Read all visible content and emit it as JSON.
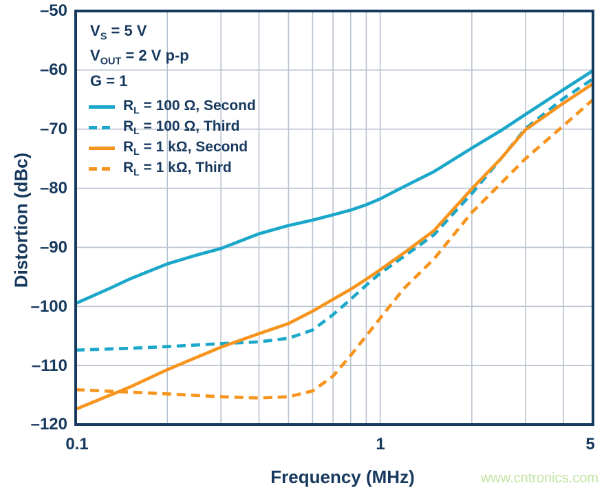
{
  "conditions": {
    "lines": [
      {
        "pre": "V",
        "sub": "S",
        "post": " = 5 V"
      },
      {
        "pre": "V",
        "sub": "OUT",
        "post": " = 2 V p-p"
      },
      {
        "pre": "G",
        "sub": "",
        "post": " = 1"
      }
    ]
  },
  "legend": {
    "items": [
      {
        "pre": "R",
        "sub": "L",
        "post": " = 100 Ω, Second"
      },
      {
        "pre": "R",
        "sub": "L",
        "post": " = 100 Ω, Third"
      },
      {
        "pre": "R",
        "sub": "L",
        "post": " = 1 kΩ, Second"
      },
      {
        "pre": "R",
        "sub": "L",
        "post": " = 1 kΩ, Third"
      }
    ]
  },
  "axes": {
    "y_label": "Distortion (dBc)",
    "x_label": "Frequency (MHz)",
    "y_tick_labels": [
      "–50",
      "–60",
      "–70",
      "–80",
      "–90",
      "–100",
      "–110",
      "–120"
    ],
    "x_tick_labels": [
      "0.1",
      "1",
      "5"
    ]
  },
  "watermark": {
    "text": "www.cntronics.com",
    "color": "#c3e4a3"
  },
  "colors": {
    "navy": "#17395e",
    "cyan": "#1ba7c9",
    "orange": "#f7941e",
    "grid": "#b9c3cf"
  },
  "chart_data": {
    "type": "line",
    "title": "",
    "x_scale": "log",
    "xlim": [
      0.1,
      5
    ],
    "ylim": [
      -120,
      -50
    ],
    "xlabel": "Frequency (MHz)",
    "ylabel": "Distortion (dBc)",
    "x_ticks": [
      0.1,
      1,
      5
    ],
    "y_ticks": [
      -50,
      -60,
      -70,
      -80,
      -90,
      -100,
      -110,
      -120
    ],
    "x_gridlines": [
      0.2,
      0.3,
      0.4,
      0.5,
      0.6,
      0.7,
      0.8,
      0.9,
      1,
      2,
      3,
      4
    ],
    "y_gridlines": [
      -60,
      -70,
      -80,
      -90,
      -100,
      -110
    ],
    "grid": true,
    "legend_position": "top-left-inside",
    "series": [
      {
        "name": "RL = 100 Ω, Second",
        "color": "#1ba7c9",
        "line_style": "solid",
        "points": [
          [
            0.1,
            -99.5
          ],
          [
            0.13,
            -96.9
          ],
          [
            0.15,
            -95.4
          ],
          [
            0.2,
            -92.8
          ],
          [
            0.25,
            -91.3
          ],
          [
            0.3,
            -90.2
          ],
          [
            0.4,
            -87.7
          ],
          [
            0.5,
            -86.3
          ],
          [
            0.6,
            -85.4
          ],
          [
            0.7,
            -84.5
          ],
          [
            0.8,
            -83.7
          ],
          [
            0.9,
            -82.8
          ],
          [
            1,
            -81.8
          ],
          [
            1.2,
            -79.7
          ],
          [
            1.5,
            -77.2
          ],
          [
            2,
            -73.2
          ],
          [
            2.5,
            -70.2
          ],
          [
            3,
            -67.5
          ],
          [
            4,
            -63.3
          ],
          [
            5,
            -60.1
          ]
        ]
      },
      {
        "name": "RL = 100 Ω, Third",
        "color": "#1ba7c9",
        "line_style": "dashed",
        "points": [
          [
            0.1,
            -107.4
          ],
          [
            0.15,
            -107.1
          ],
          [
            0.2,
            -106.8
          ],
          [
            0.3,
            -106.3
          ],
          [
            0.4,
            -106.0
          ],
          [
            0.5,
            -105.4
          ],
          [
            0.6,
            -104.0
          ],
          [
            0.7,
            -101.4
          ],
          [
            0.8,
            -98.8
          ],
          [
            0.9,
            -96.4
          ],
          [
            1,
            -94.4
          ],
          [
            1.2,
            -91.5
          ],
          [
            1.5,
            -87.9
          ],
          [
            2,
            -80.9
          ],
          [
            2.5,
            -74.9
          ],
          [
            3,
            -69.9
          ],
          [
            4,
            -64.8
          ],
          [
            5,
            -61.5
          ]
        ]
      },
      {
        "name": "RL = 1 kΩ, Second",
        "color": "#f7941e",
        "line_style": "solid",
        "points": [
          [
            0.1,
            -117.4
          ],
          [
            0.15,
            -113.7
          ],
          [
            0.2,
            -110.7
          ],
          [
            0.3,
            -106.9
          ],
          [
            0.4,
            -104.6
          ],
          [
            0.5,
            -102.9
          ],
          [
            0.6,
            -100.8
          ],
          [
            0.7,
            -98.8
          ],
          [
            0.8,
            -97.1
          ],
          [
            0.9,
            -95.4
          ],
          [
            1,
            -93.8
          ],
          [
            1.2,
            -90.9
          ],
          [
            1.5,
            -87.2
          ],
          [
            2,
            -80.1
          ],
          [
            2.5,
            -74.9
          ],
          [
            3,
            -70.1
          ],
          [
            4,
            -65.6
          ],
          [
            5,
            -62.3
          ]
        ]
      },
      {
        "name": "RL = 1 kΩ, Third",
        "color": "#f7941e",
        "line_style": "dashed",
        "points": [
          [
            0.1,
            -114.1
          ],
          [
            0.15,
            -114.5
          ],
          [
            0.2,
            -114.8
          ],
          [
            0.3,
            -115.3
          ],
          [
            0.4,
            -115.5
          ],
          [
            0.5,
            -115.3
          ],
          [
            0.6,
            -114.3
          ],
          [
            0.7,
            -111.8
          ],
          [
            0.8,
            -108.3
          ],
          [
            0.9,
            -105.0
          ],
          [
            1,
            -102.0
          ],
          [
            1.2,
            -96.9
          ],
          [
            1.5,
            -92.0
          ],
          [
            2,
            -84.1
          ],
          [
            2.5,
            -79.1
          ],
          [
            3,
            -75.0
          ],
          [
            4,
            -69.4
          ],
          [
            5,
            -65.0
          ]
        ]
      }
    ]
  }
}
